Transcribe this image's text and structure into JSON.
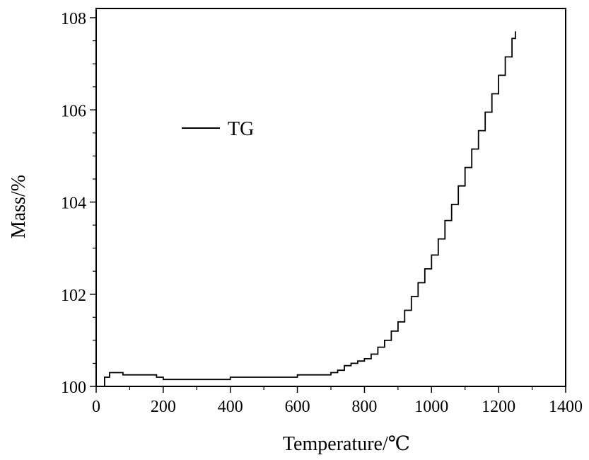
{
  "chart_data": {
    "type": "line",
    "xlabel": "Temperature/℃",
    "ylabel": "Mass/%",
    "xlim": [
      0,
      1400
    ],
    "ylim": [
      100,
      108.2
    ],
    "x_ticks": [
      0,
      200,
      400,
      600,
      800,
      1000,
      1200,
      1400
    ],
    "x_tick_labels": [
      "0",
      "200",
      "400",
      "600",
      "800",
      "1000",
      "1200",
      "1400"
    ],
    "y_ticks": [
      100,
      102,
      104,
      106,
      108
    ],
    "y_tick_labels": [
      "100",
      "102",
      "104",
      "106",
      "108"
    ],
    "grid": false,
    "legend": {
      "position": "upper-left",
      "entries": [
        "TG"
      ]
    },
    "series": [
      {
        "name": "TG",
        "color": "#000000",
        "x": [
          20,
          25,
          40,
          60,
          80,
          100,
          150,
          180,
          200,
          250,
          300,
          350,
          400,
          450,
          500,
          550,
          600,
          650,
          700,
          720,
          740,
          760,
          780,
          800,
          820,
          840,
          860,
          880,
          900,
          920,
          940,
          960,
          980,
          1000,
          1020,
          1040,
          1060,
          1080,
          1100,
          1120,
          1140,
          1160,
          1180,
          1200,
          1220,
          1240,
          1250
        ],
        "y": [
          100.0,
          100.2,
          100.3,
          100.3,
          100.25,
          100.25,
          100.25,
          100.2,
          100.15,
          100.15,
          100.15,
          100.15,
          100.2,
          100.2,
          100.2,
          100.2,
          100.25,
          100.25,
          100.3,
          100.35,
          100.45,
          100.5,
          100.55,
          100.6,
          100.7,
          100.85,
          101.0,
          101.2,
          101.4,
          101.65,
          101.95,
          102.25,
          102.55,
          102.85,
          103.2,
          103.6,
          103.95,
          104.35,
          104.75,
          105.15,
          105.55,
          105.95,
          106.35,
          106.75,
          107.15,
          107.55,
          107.7
        ]
      }
    ]
  }
}
